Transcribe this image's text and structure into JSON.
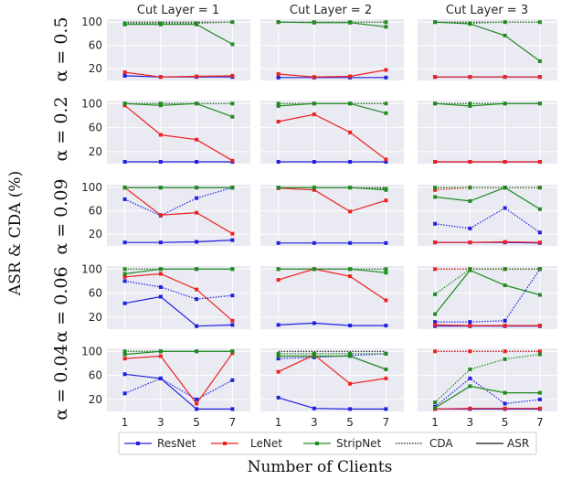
{
  "chart_data": {
    "type": "line",
    "ylabel": "ASR & CDA (%)",
    "xlabel": "Number of Clients",
    "x": [
      1,
      3,
      5,
      7
    ],
    "x_ticks": [
      "1",
      "3",
      "5",
      "7"
    ],
    "y_ticks": [
      "20",
      "60",
      "100"
    ],
    "ylim": [
      0,
      105
    ],
    "grid": true,
    "column_titles": [
      "Cut Layer = 1",
      "Cut Layer = 2",
      "Cut Layer = 3"
    ],
    "row_labels": [
      "α = 0.5",
      "α = 0.2",
      "α = 0.09",
      "α = 0.06",
      "α = 0.04"
    ],
    "legend": {
      "placement": "bottom-center",
      "entries": [
        {
          "label": "ResNet",
          "color": "#1f1fe0",
          "style": "marker"
        },
        {
          "label": "LeNet",
          "color": "#ee2020",
          "style": "marker"
        },
        {
          "label": "StripNet",
          "color": "#208a20",
          "style": "marker"
        },
        {
          "label": "CDA",
          "color": "#111111",
          "style": "dotted"
        },
        {
          "label": "ASR",
          "color": "#111111",
          "style": "solid"
        }
      ]
    },
    "colors": {
      "ResNet": "#1f1fe0",
      "LeNet": "#ee2020",
      "StripNet": "#208a20",
      "CDA": "#111111"
    },
    "panels": [
      [
        {
          "CDA": [
            100,
            100,
            100,
            100
          ],
          "ResNet": {
            "ASR": [
              8,
              6,
              6,
              6
            ],
            "CDA": null
          },
          "LeNet": {
            "ASR": [
              14,
              6,
              7,
              8
            ],
            "CDA": null
          },
          "StripNet": {
            "ASR": [
              96,
              96,
              96,
              62
            ],
            "CDA": [
              98,
              98,
              98,
              100
            ]
          }
        },
        {
          "CDA": [
            100,
            100,
            100,
            100
          ],
          "ResNet": {
            "ASR": [
              5,
              5,
              5,
              5
            ],
            "CDA": null
          },
          "LeNet": {
            "ASR": [
              11,
              6,
              7,
              18
            ],
            "CDA": null
          },
          "StripNet": {
            "ASR": [
              100,
              99,
              99,
              92
            ],
            "CDA": [
              100,
              100,
              100,
              100
            ]
          }
        },
        {
          "CDA": [
            100,
            100,
            100,
            100
          ],
          "ResNet": {
            "ASR": [
              6,
              6,
              6,
              6
            ],
            "CDA": null
          },
          "LeNet": {
            "ASR": [
              6,
              6,
              6,
              6
            ],
            "CDA": null
          },
          "StripNet": {
            "ASR": [
              100,
              97,
              77,
              33
            ],
            "CDA": [
              100,
              98,
              100,
              100
            ]
          }
        }
      ],
      [
        {
          "CDA": [
            100,
            100,
            100,
            100
          ],
          "ResNet": {
            "ASR": [
              3,
              3,
              3,
              3
            ],
            "CDA": null
          },
          "LeNet": {
            "ASR": [
              97,
              48,
              40,
              5
            ],
            "CDA": null
          },
          "StripNet": {
            "ASR": [
              100,
              97,
              100,
              78
            ],
            "CDA": [
              100,
              100,
              100,
              100
            ]
          }
        },
        {
          "CDA": [
            100,
            100,
            100,
            100
          ],
          "ResNet": {
            "ASR": [
              3,
              3,
              3,
              3
            ],
            "CDA": null
          },
          "LeNet": {
            "ASR": [
              70,
              82,
              52,
              7
            ],
            "CDA": null
          },
          "StripNet": {
            "ASR": [
              96,
              100,
              100,
              84
            ],
            "CDA": [
              100,
              100,
              100,
              100
            ]
          }
        },
        {
          "CDA": [
            100,
            100,
            100,
            100
          ],
          "ResNet": {
            "ASR": [
              3,
              3,
              3,
              3
            ],
            "CDA": null
          },
          "LeNet": {
            "ASR": [
              3,
              3,
              3,
              3
            ],
            "CDA": null
          },
          "StripNet": {
            "ASR": [
              100,
              96,
              100,
              100
            ],
            "CDA": [
              100,
              100,
              100,
              100
            ]
          }
        }
      ],
      [
        {
          "CDA": [
            100,
            100,
            100,
            100
          ],
          "ResNet": {
            "ASR": [
              6,
              6,
              7,
              10
            ],
            "CDA": [
              80,
              52,
              82,
              100
            ]
          },
          "LeNet": {
            "ASR": [
              100,
              53,
              57,
              21
            ],
            "CDA": null
          },
          "StripNet": {
            "ASR": [
              100,
              100,
              100,
              100
            ],
            "CDA": [
              100,
              100,
              100,
              100
            ]
          }
        },
        {
          "CDA": [
            100,
            100,
            100,
            100
          ],
          "ResNet": {
            "ASR": [
              5,
              5,
              5,
              5
            ],
            "CDA": null
          },
          "LeNet": {
            "ASR": [
              99,
              96,
              59,
              78
            ],
            "CDA": null
          },
          "StripNet": {
            "ASR": [
              100,
              100,
              100,
              96
            ],
            "CDA": [
              100,
              100,
              100,
              98
            ]
          }
        },
        {
          "CDA": [
            100,
            100,
            100,
            100
          ],
          "ResNet": {
            "ASR": [
              6,
              6,
              6,
              5
            ],
            "CDA": [
              38,
              30,
              65,
              23
            ]
          },
          "LeNet": {
            "ASR": [
              6,
              6,
              7,
              6
            ],
            "CDA": [
              96,
              100,
              100,
              100
            ]
          },
          "StripNet": {
            "ASR": [
              84,
              77,
              100,
              63
            ],
            "CDA": [
              100,
              100,
              100,
              100
            ]
          }
        }
      ],
      [
        {
          "CDA": [
            100,
            100,
            100,
            100
          ],
          "ResNet": {
            "ASR": [
              43,
              54,
              5,
              7
            ],
            "CDA": [
              80,
              70,
              50,
              56
            ]
          },
          "LeNet": {
            "ASR": [
              87,
              92,
              66,
              14
            ],
            "CDA": null
          },
          "StripNet": {
            "ASR": [
              92,
              100,
              100,
              100
            ],
            "CDA": [
              100,
              100,
              100,
              100
            ]
          }
        },
        {
          "CDA": [
            100,
            100,
            100,
            100
          ],
          "ResNet": {
            "ASR": [
              7,
              10,
              6,
              6
            ],
            "CDA": null
          },
          "LeNet": {
            "ASR": [
              82,
              100,
              88,
              48
            ],
            "CDA": null
          },
          "StripNet": {
            "ASR": [
              100,
              100,
              100,
              94
            ],
            "CDA": [
              100,
              100,
              100,
              100
            ]
          }
        },
        {
          "CDA": [
            100,
            100,
            100,
            100
          ],
          "ResNet": {
            "ASR": [
              5,
              5,
              5,
              5
            ],
            "CDA": [
              12,
              12,
              14,
              100
            ]
          },
          "LeNet": {
            "ASR": [
              7,
              6,
              6,
              6
            ],
            "CDA": [
              100,
              100,
              100,
              100
            ]
          },
          "StripNet": {
            "ASR": [
              25,
              98,
              73,
              57
            ],
            "CDA": [
              58,
              100,
              100,
              100
            ]
          }
        }
      ],
      [
        {
          "CDA": [
            100,
            100,
            100,
            100
          ],
          "ResNet": {
            "ASR": [
              62,
              55,
              4,
              4
            ],
            "CDA": [
              30,
              55,
              20,
              52
            ]
          },
          "LeNet": {
            "ASR": [
              88,
              92,
              13,
              97
            ],
            "CDA": null
          },
          "StripNet": {
            "ASR": [
              95,
              100,
              100,
              100
            ],
            "CDA": [
              100,
              100,
              100,
              100
            ]
          }
        },
        {
          "CDA": [
            100,
            100,
            100,
            100
          ],
          "ResNet": {
            "ASR": [
              23,
              5,
              4,
              4
            ],
            "CDA": [
              88,
              90,
              93,
              96
            ]
          },
          "LeNet": {
            "ASR": [
              66,
              94,
              46,
              55
            ],
            "CDA": null
          },
          "StripNet": {
            "ASR": [
              92,
              92,
              92,
              70
            ],
            "CDA": [
              96,
              96,
              96,
              96
            ]
          }
        },
        {
          "CDA": [
            100,
            100,
            100,
            100
          ],
          "ResNet": {
            "ASR": [
              4,
              4,
              4,
              4
            ],
            "CDA": [
              8,
              55,
              13,
              20
            ]
          },
          "LeNet": {
            "ASR": [
              4,
              5,
              5,
              5
            ],
            "CDA": [
              100,
              100,
              100,
              100
            ]
          },
          "StripNet": {
            "ASR": [
              6,
              42,
              31,
              31
            ],
            "CDA": [
              15,
              70,
              87,
              95
            ]
          }
        }
      ]
    ]
  }
}
